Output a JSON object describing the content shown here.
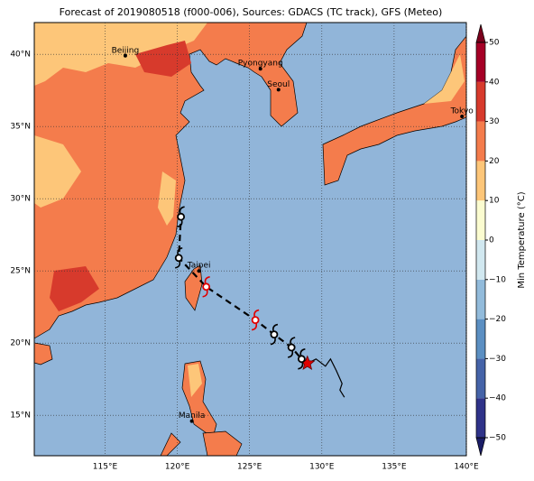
{
  "map": {
    "title": "Forecast of 2019080518 (f000-006), Sources: GDACS (TC track), GFS (Meteo)",
    "lonlim": [
      110.1,
      140
    ],
    "latlim": [
      12.2,
      42.2
    ],
    "grid": true,
    "xticks": [
      {
        "value": 115,
        "label": "115°E"
      },
      {
        "value": 120,
        "label": "120°E"
      },
      {
        "value": 125,
        "label": "125°E"
      },
      {
        "value": 130,
        "label": "130°E"
      },
      {
        "value": 135,
        "label": "135°E"
      },
      {
        "value": 140,
        "label": "140°E"
      }
    ],
    "yticks": [
      {
        "value": 15,
        "label": "15°N"
      },
      {
        "value": 20,
        "label": "20°N"
      },
      {
        "value": 25,
        "label": "25°N"
      },
      {
        "value": 30,
        "label": "30°N"
      },
      {
        "value": 35,
        "label": "35°N"
      },
      {
        "value": 40,
        "label": "40°N"
      }
    ],
    "cities": [
      {
        "name": "Beijing",
        "lon": 116.4,
        "lat": 39.9
      },
      {
        "name": "Pyongyang",
        "lon": 125.75,
        "lat": 39.0
      },
      {
        "name": "Seoul",
        "lon": 127.0,
        "lat": 37.55
      },
      {
        "name": "Tokyo",
        "lon": 139.7,
        "lat": 35.7
      },
      {
        "name": "Taipei",
        "lon": 121.5,
        "lat": 25.0
      },
      {
        "name": "Manila",
        "lon": 121.0,
        "lat": 14.6
      }
    ],
    "past_track": {
      "lon": [
        131.56,
        131.25,
        131.4,
        131.0,
        130.6,
        130.25,
        129.6,
        129.0
      ],
      "lat": [
        16.25,
        16.75,
        17.2,
        18.1,
        18.9,
        18.4,
        18.9,
        18.6
      ]
    },
    "forecast": {
      "lon": [
        129.0,
        128.6,
        127.9,
        126.7,
        125.4,
        122.0,
        120.1,
        120.25
      ],
      "lat": [
        18.6,
        18.9,
        19.7,
        20.6,
        21.6,
        23.9,
        25.9,
        28.75
      ],
      "colors": [
        "#e00000",
        "#000000",
        "#000000",
        "#000000",
        "#e00000",
        "#e00000",
        "#000000",
        "#000000"
      ]
    }
  },
  "colorbar": {
    "label": "Min Temperature (°C)",
    "clim": [
      -50,
      50
    ],
    "ticks": [
      {
        "value": -50,
        "label": "−50"
      },
      {
        "value": -40,
        "label": "−40"
      },
      {
        "value": -30,
        "label": "−30"
      },
      {
        "value": -20,
        "label": "−20"
      },
      {
        "value": -10,
        "label": "−10"
      },
      0,
      10,
      20,
      30,
      40,
      50
    ],
    "colors": [
      "#2f3389",
      "#4563a8",
      "#5b8fc2",
      "#92bbdb",
      "#d1e8f0",
      "#fbfcd0",
      "#fdc679",
      "#f47c4c",
      "#d73a2c",
      "#a50026"
    ],
    "under": "#1a1c66",
    "over": "#7a001c"
  }
}
